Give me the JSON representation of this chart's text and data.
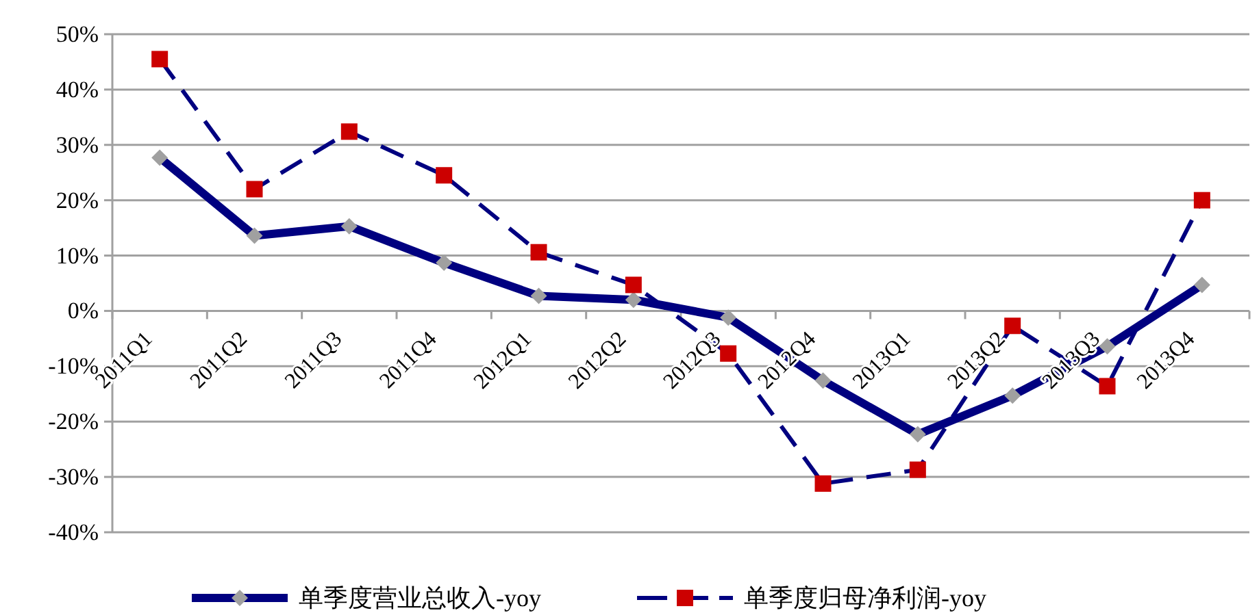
{
  "chart_data": {
    "type": "line",
    "categories": [
      "2011Q1",
      "2011Q2",
      "2011Q3",
      "2011Q4",
      "2012Q1",
      "2012Q2",
      "2012Q3",
      "2012Q4",
      "2013Q1",
      "2013Q2",
      "2013Q3",
      "2013Q4"
    ],
    "series": [
      {
        "name": "单季度营业总收入-yoy",
        "color": "#000080",
        "marker": "diamond",
        "line_style": "solid",
        "values": [
          27.7,
          13.6,
          15.3,
          8.7,
          2.7,
          2.0,
          -1.2,
          -12.6,
          -22.3,
          -15.3,
          -6.4,
          4.7
        ]
      },
      {
        "name": "单季度归母净利润-yoy",
        "color": "#000080",
        "marker": "square",
        "line_style": "dashed",
        "values": [
          45.5,
          22.0,
          32.4,
          24.5,
          10.6,
          4.7,
          -7.7,
          -31.2,
          -28.7,
          -2.7,
          -13.6,
          20.0
        ]
      }
    ],
    "ylim": [
      -40,
      50
    ],
    "yticks": [
      {
        "value": -40,
        "label": "-40%"
      },
      {
        "value": -30,
        "label": "-30%"
      },
      {
        "value": -20,
        "label": "-20%"
      },
      {
        "value": -10,
        "label": "-10%"
      },
      {
        "value": 0,
        "label": "0%"
      },
      {
        "value": 10,
        "label": "10%"
      },
      {
        "value": 20,
        "label": "20%"
      },
      {
        "value": 30,
        "label": "30%"
      },
      {
        "value": 40,
        "label": "40%"
      },
      {
        "value": 50,
        "label": "50%"
      }
    ],
    "grid": "y",
    "legend": "bottom"
  }
}
